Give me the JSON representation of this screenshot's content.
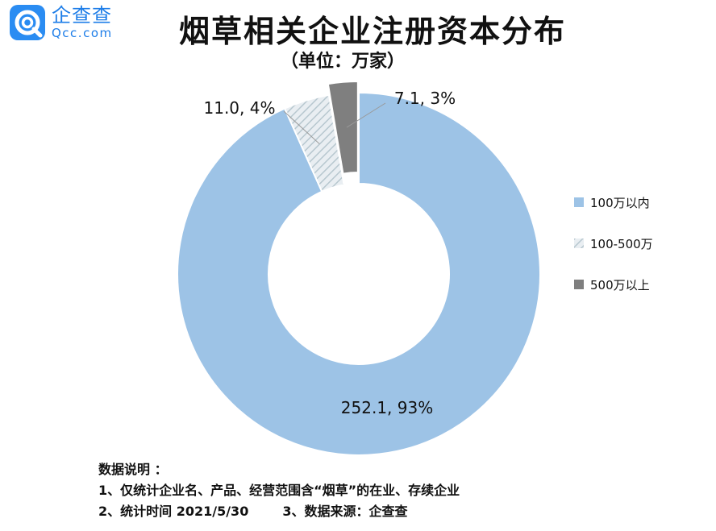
{
  "logo": {
    "cn": "企查查",
    "en": "Qcc.com",
    "icon": "qcc-logo-icon"
  },
  "title": "烟草相关企业注册资本分布",
  "subtitle": "（单位：万家）",
  "colors": {
    "series1": "#9dc3e6",
    "series2_bg": "#e9eef2",
    "series2_hatch": "#b7c7cf",
    "series3": "#7f7f7f",
    "accent": "#1d7de8"
  },
  "chart_data": {
    "type": "donut",
    "title": "烟草相关企业注册资本分布",
    "unit": "（单位：万家）",
    "series": [
      {
        "name": "100万以内",
        "value": 252.1,
        "percent": "93%",
        "label": "252.1, 93%"
      },
      {
        "name": "100-500万",
        "value": 11.0,
        "percent": "4%",
        "label": "11.0, 4%"
      },
      {
        "name": "500万以上",
        "value": 7.1,
        "percent": "3%",
        "label": "7.1, 3%"
      }
    ],
    "legend_position": "right"
  },
  "notes": {
    "heading": "数据说明 ：",
    "line1": "1、仅统计企业名、产品、经营范围含“烟草”的在业、存续企业",
    "line2a": "2、统计时间 2021/5/30",
    "line2b": "3、数据来源：企查查"
  }
}
